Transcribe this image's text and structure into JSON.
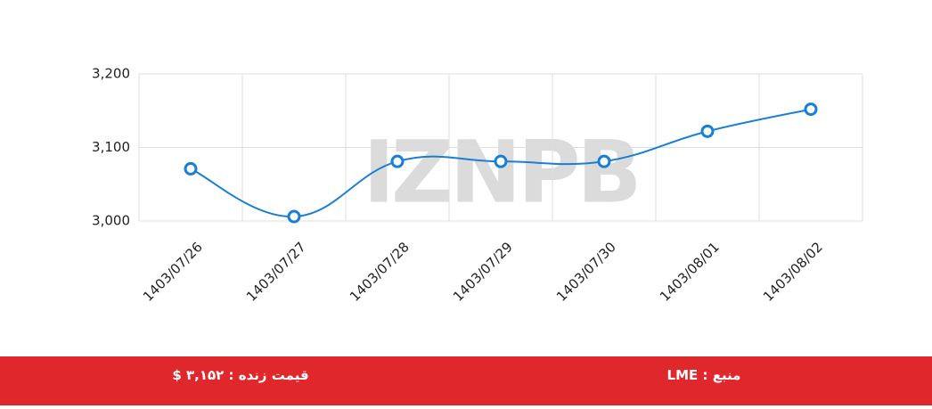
{
  "chart_data": {
    "type": "line",
    "watermark": "IZNPB",
    "categories": [
      "1403/07/26",
      "1403/07/27",
      "1403/07/28",
      "1403/07/29",
      "1403/07/30",
      "1403/08/01",
      "1403/08/02"
    ],
    "series": [
      {
        "color": "#1a7fd4",
        "values": [
          3071,
          3006,
          3081,
          3081,
          3081,
          3122,
          3152
        ]
      }
    ],
    "ylim": [
      3000,
      3200
    ],
    "yticks": [
      {
        "value": 3000,
        "label": "3,000"
      },
      {
        "value": 3100,
        "label": "3,100"
      },
      {
        "value": 3200,
        "label": "3,200"
      }
    ],
    "grid": true
  },
  "footer": {
    "price": "قیمت زنده : ۳,۱۵۲ $",
    "source": "منبع : LME",
    "color": "#e0282c"
  }
}
